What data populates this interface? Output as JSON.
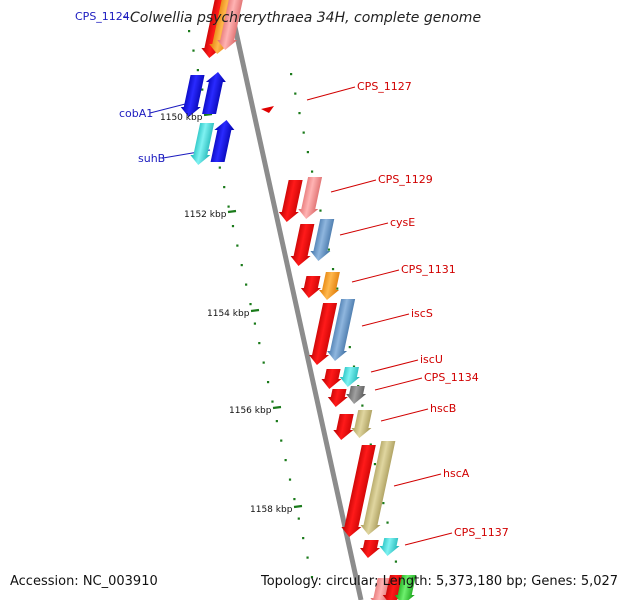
{
  "title": "Colwellia psychrerythraea 34H, complete genome",
  "footer": {
    "accession": "Accession: NC_003910",
    "topology": "Topology: circular; Length: 5,373,180 bp; Genes: 5,027"
  },
  "colors": {
    "backbone": "#8c8c8c",
    "tick": "#1a7a1a",
    "label_red": "#d10000",
    "label_blue": "#1b1bbf"
  },
  "scale_ticks": [
    {
      "label": "1150 kbp"
    },
    {
      "label": "1152 kbp"
    },
    {
      "label": "1154 kbp"
    },
    {
      "label": "1156 kbp"
    },
    {
      "label": "1158 kbp"
    }
  ],
  "gene_labels": [
    {
      "text": "CPS_1124",
      "color": "blue"
    },
    {
      "text": "cobA1",
      "color": "blue"
    },
    {
      "text": "suhB",
      "color": "blue"
    },
    {
      "text": "CPS_1127",
      "color": "red"
    },
    {
      "text": "CPS_1129",
      "color": "red"
    },
    {
      "text": "cysE",
      "color": "red"
    },
    {
      "text": "CPS_1131",
      "color": "red"
    },
    {
      "text": "iscS",
      "color": "red"
    },
    {
      "text": "iscU",
      "color": "red"
    },
    {
      "text": "CPS_1134",
      "color": "red"
    },
    {
      "text": "hscB",
      "color": "red"
    },
    {
      "text": "hscA",
      "color": "red"
    },
    {
      "text": "CPS_1137",
      "color": "red"
    }
  ]
}
